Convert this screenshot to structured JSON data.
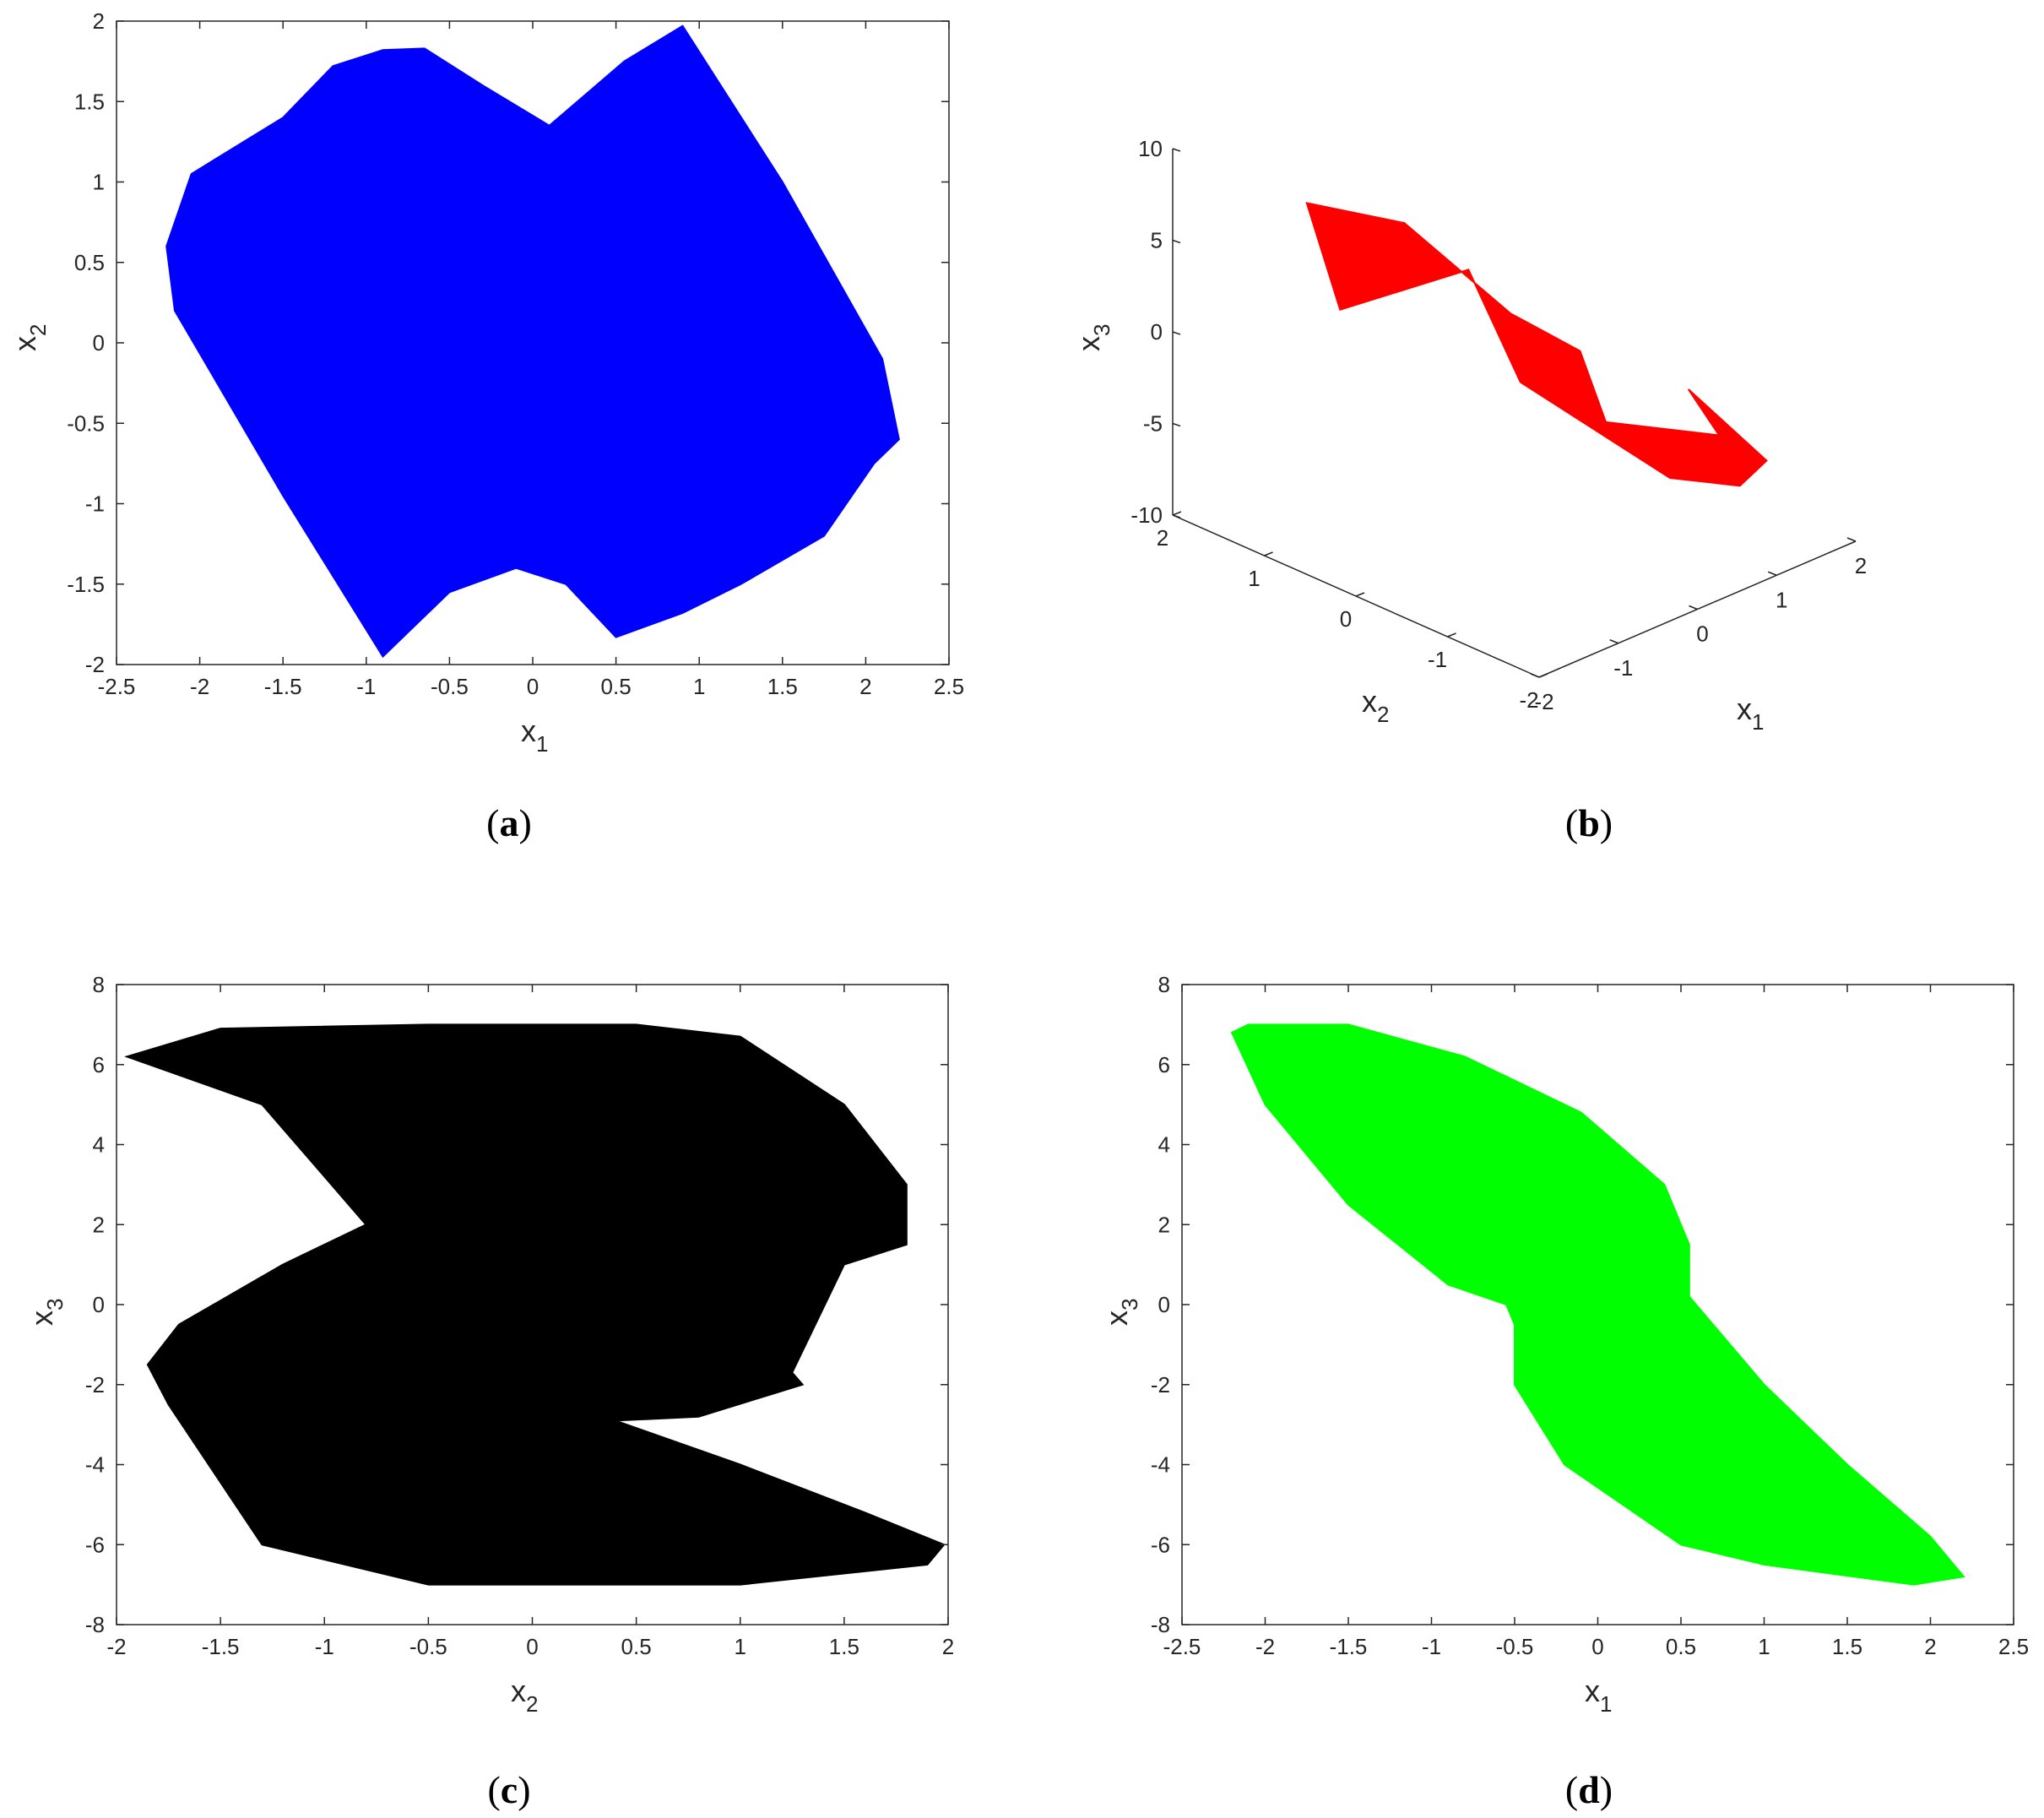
{
  "figure": {
    "panels": [
      {
        "id": "a",
        "caption_letter": "a",
        "chart_data": {
          "type": "scatter",
          "projection": "x1-x2 phase portrait",
          "color": "#0000ff",
          "xlabel": {
            "base": "x",
            "sub": "1"
          },
          "ylabel": {
            "base": "x",
            "sub": "2"
          },
          "xlim": [
            -2.5,
            2.5
          ],
          "ylim": [
            -2,
            2
          ],
          "xticks": [
            "-2.5",
            "-2",
            "-1.5",
            "-1",
            "-0.5",
            "0",
            "0.5",
            "1",
            "1.5",
            "2",
            "2.5"
          ],
          "yticks": [
            "-2",
            "-1.5",
            "-1",
            "-0.5",
            "0",
            "0.5",
            "1",
            "1.5",
            "2"
          ],
          "outline_x": [
            -1.5,
            -2.05,
            -2.2,
            -2.15,
            -1.5,
            -0.9,
            -0.5,
            -0.1,
            0.2,
            0.5,
            0.9,
            1.25,
            1.75,
            2.05,
            2.2,
            2.1,
            1.5,
            0.9,
            0.55,
            0.1,
            -0.3,
            -0.65,
            -0.9,
            -1.2,
            -1.5
          ],
          "outline_y": [
            1.4,
            1.05,
            0.6,
            0.2,
            -0.95,
            -1.95,
            -1.55,
            -1.4,
            -1.5,
            -1.83,
            -1.68,
            -1.5,
            -1.2,
            -0.75,
            -0.6,
            -0.1,
            1.0,
            1.97,
            1.75,
            1.35,
            1.6,
            1.83,
            1.82,
            1.72,
            1.4
          ]
        }
      },
      {
        "id": "b",
        "caption_letter": "b",
        "chart_data": {
          "type": "scatter",
          "projection": "3D view (x1, x2, x3)",
          "color": "#ff0000",
          "xlabel": {
            "base": "x",
            "sub": "1"
          },
          "ylabel": {
            "base": "x",
            "sub": "2"
          },
          "zlabel": {
            "base": "x",
            "sub": "3"
          },
          "x1lim": [
            -2,
            2
          ],
          "x2lim": [
            -2,
            2
          ],
          "x3lim": [
            -10,
            10
          ],
          "x1ticks": [
            "-2",
            "-1",
            "0",
            "1",
            "2"
          ],
          "x2ticks": [
            "-2",
            "-1",
            "0",
            "1",
            "2"
          ],
          "x3ticks": [
            "-10",
            "-5",
            "0",
            "5",
            "10"
          ],
          "outline_x1": [
            -2.2,
            -1.0,
            0.0,
            0.3,
            0.6,
            0.0,
            1.2,
            2.2,
            1.8,
            1.0,
            0.0,
            -0.5,
            0.0
          ],
          "outline_x2": [
            0.0,
            1.4,
            1.2,
            0.3,
            -0.2,
            -1.0,
            -1.2,
            0.0,
            -1.2,
            -1.6,
            -1.7,
            -0.5,
            0.5
          ],
          "outline_x3": [
            6.0,
            6.5,
            4.0,
            0.5,
            -1.0,
            -2.0,
            -4.5,
            -6.5,
            -7.0,
            -6.0,
            -3.5,
            0.0,
            3.0
          ]
        }
      },
      {
        "id": "c",
        "caption_letter": "c",
        "chart_data": {
          "type": "scatter",
          "projection": "x2-x3 phase portrait",
          "color": "#000000",
          "xlabel": {
            "base": "x",
            "sub": "2"
          },
          "ylabel": {
            "base": "x",
            "sub": "3"
          },
          "xlim": [
            -2,
            2
          ],
          "ylim": [
            -8,
            8
          ],
          "xticks": [
            "-2",
            "-1.5",
            "-1",
            "-0.5",
            "0",
            "0.5",
            "1",
            "1.5",
            "2"
          ],
          "yticks": [
            "-8",
            "-6",
            "-4",
            "-2",
            "0",
            "2",
            "4",
            "6",
            "8"
          ],
          "outline_x": [
            -1.95,
            -1.5,
            -0.5,
            0.5,
            1.0,
            1.5,
            1.8,
            1.8,
            1.5,
            1.25,
            1.3,
            0.8,
            0.4,
            1.0,
            1.6,
            1.98,
            1.9,
            1.0,
            -0.5,
            -1.3,
            -1.75,
            -1.85,
            -1.7,
            -1.2,
            -0.8,
            -1.0,
            -1.3,
            -1.95
          ],
          "outline_y": [
            6.2,
            6.9,
            7.0,
            7.0,
            6.7,
            5.0,
            3.0,
            1.5,
            1.0,
            -1.7,
            -2.0,
            -2.8,
            -2.9,
            -4.0,
            -5.2,
            -6.0,
            -6.5,
            -7.0,
            -7.0,
            -6.0,
            -2.5,
            -1.5,
            -0.5,
            1.0,
            2.0,
            3.2,
            5.0,
            6.2
          ]
        }
      },
      {
        "id": "d",
        "caption_letter": "d",
        "chart_data": {
          "type": "scatter",
          "projection": "x1-x3 phase portrait",
          "color": "#00ff00",
          "xlabel": {
            "base": "x",
            "sub": "1"
          },
          "ylabel": {
            "base": "x",
            "sub": "3"
          },
          "xlim": [
            -2.5,
            2.5
          ],
          "ylim": [
            -8,
            8
          ],
          "xticks": [
            "-2.5",
            "-2",
            "-1.5",
            "-1",
            "-0.5",
            "0",
            "0.5",
            "1",
            "1.5",
            "2",
            "2.5"
          ],
          "yticks": [
            "-8",
            "-6",
            "-4",
            "-2",
            "0",
            "2",
            "4",
            "6",
            "8"
          ],
          "outline_x": [
            -2.2,
            -2.1,
            -1.5,
            -0.8,
            -0.1,
            0.4,
            0.55,
            0.55,
            1.0,
            1.5,
            2.0,
            2.2,
            1.9,
            1.0,
            0.5,
            -0.2,
            -0.5,
            -0.5,
            -0.55,
            -0.9,
            -1.5,
            -2.0,
            -2.2
          ],
          "outline_y": [
            6.8,
            7.0,
            7.0,
            6.2,
            4.8,
            3.0,
            1.5,
            0.2,
            -2.0,
            -4.0,
            -5.8,
            -6.8,
            -7.0,
            -6.5,
            -6.0,
            -4.0,
            -2.0,
            -0.5,
            0.0,
            0.5,
            2.5,
            5.0,
            6.8
          ]
        }
      }
    ]
  }
}
